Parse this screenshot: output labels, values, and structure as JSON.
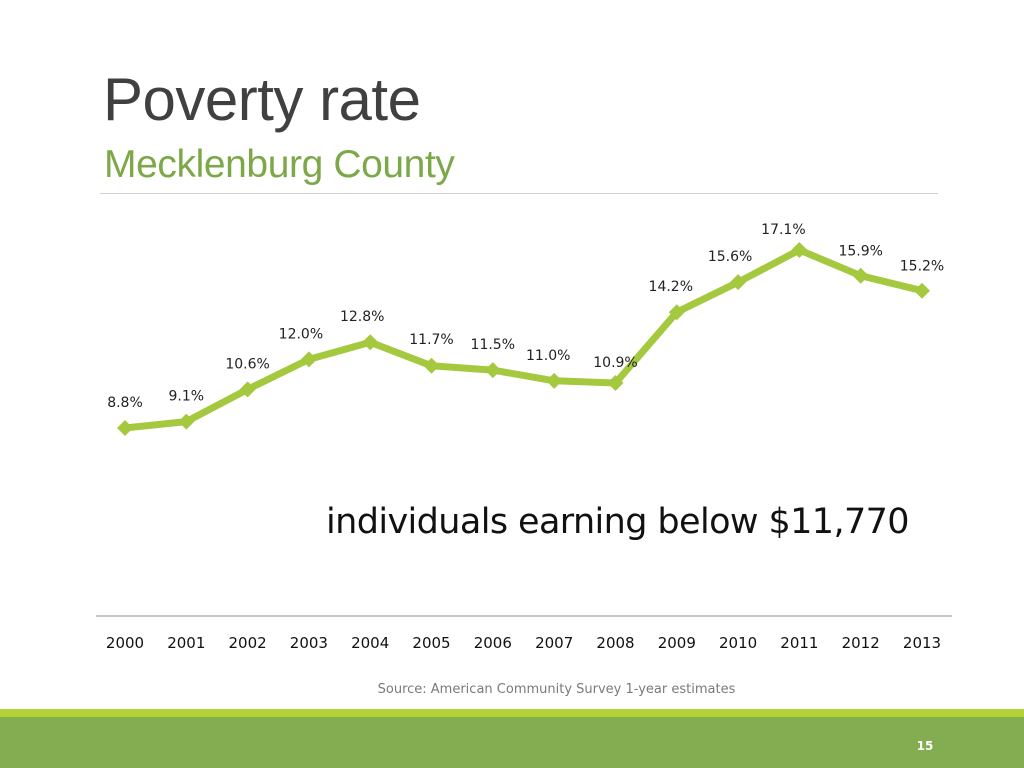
{
  "slide": {
    "title": "Poverty rate",
    "subtitle": "Mecklenburg County",
    "annotation": "individuals earning below $11,770",
    "source": "Source: American Community Survey 1-year estimates",
    "page_number": "15"
  },
  "colors": {
    "title": "#404040",
    "subtitle": "#7da848",
    "series_line": "#a5c93e",
    "footer_stripe": "#b2d235",
    "footer_band": "#84ac50"
  },
  "chart_data": {
    "type": "line",
    "title": "",
    "xlabel": "",
    "ylabel": "",
    "x": [
      "2000",
      "2001",
      "2002",
      "2003",
      "2004",
      "2005",
      "2006",
      "2007",
      "2008",
      "2009",
      "2010",
      "2011",
      "2012",
      "2013"
    ],
    "series": [
      {
        "values": [
          8.8,
          9.1,
          10.6,
          12.0,
          12.8,
          11.7,
          11.5,
          11.0,
          10.9,
          14.2,
          15.6,
          17.1,
          15.9,
          15.2
        ],
        "labels": [
          "8.8%",
          "9.1%",
          "10.6%",
          "12.0%",
          "12.8%",
          "11.7%",
          "11.5%",
          "11.0%",
          "10.9%",
          "14.2%",
          "15.6%",
          "17.1%",
          "15.9%",
          "15.2%"
        ]
      }
    ],
    "marker": "diamond",
    "grid": false,
    "legend": "none"
  }
}
